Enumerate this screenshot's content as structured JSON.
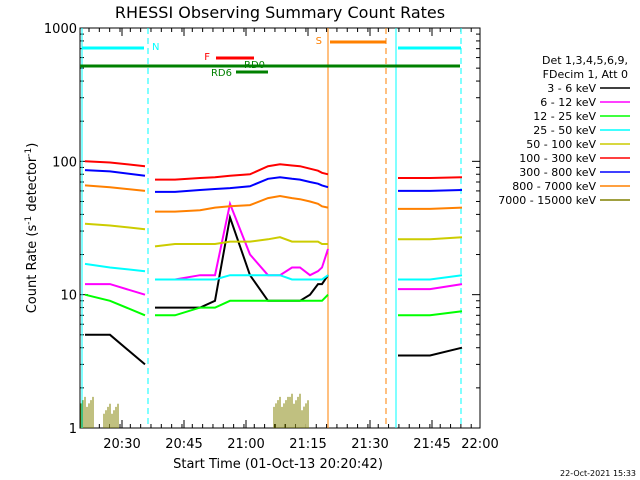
{
  "chart_data": {
    "type": "line",
    "title": "RHESSI Observing Summary Count Rates",
    "xlabel": "Start Time (01-Oct-13 20:20:42)",
    "ylabel_prefix": "Count Rate (s",
    "ylabel_sup": "-1",
    "ylabel_mid": " detector",
    "ylabel_sup2": "-1",
    "ylabel_suffix": ")",
    "yscale": "log",
    "ylim": [
      1,
      1000
    ],
    "x_tick_labels": [
      "20:30",
      "20:45",
      "21:00",
      "21:15",
      "21:30",
      "21:45",
      "22:00"
    ],
    "y_tick_labels": [
      "1",
      "10",
      "100",
      "1000"
    ],
    "legend_header": [
      "Det 1,3,4,5,6,9,",
      "FDecim 1, Att 0"
    ],
    "series": [
      {
        "name": "3 - 6 keV",
        "color": "#000000",
        "values": [
          5,
          5,
          3,
          null,
          null,
          8,
          8,
          8,
          9,
          38,
          14,
          9,
          9,
          9,
          9,
          10,
          12,
          12,
          14,
          null,
          null,
          null,
          null,
          3.5,
          3.5,
          4
        ]
      },
      {
        "name": "6 - 12 keV",
        "color": "#ff00ff",
        "values": [
          12,
          12,
          10,
          null,
          null,
          13,
          13,
          14,
          14,
          48,
          20,
          14,
          14,
          16,
          16,
          14,
          15,
          16,
          22,
          null,
          null,
          null,
          null,
          11,
          11,
          12
        ]
      },
      {
        "name": "12 - 25 keV",
        "color": "#00ff00",
        "values": [
          10,
          9,
          7,
          null,
          null,
          7,
          7,
          8,
          8,
          9,
          9,
          9,
          9,
          9,
          9,
          9,
          9,
          9,
          10,
          null,
          null,
          null,
          null,
          7,
          7,
          7.5
        ]
      },
      {
        "name": "25 - 50 keV",
        "color": "#00ffff",
        "values": [
          17,
          16,
          15,
          null,
          null,
          13,
          13,
          13,
          13,
          14,
          14,
          14,
          14,
          13,
          13,
          13,
          13,
          13,
          14,
          null,
          null,
          null,
          null,
          13,
          13,
          14
        ]
      },
      {
        "name": "50 - 100 keV",
        "color": "#cccc00",
        "values": [
          34,
          33,
          31,
          null,
          null,
          23,
          24,
          24,
          24,
          25,
          25,
          26,
          27,
          25,
          25,
          25,
          25,
          24,
          24,
          null,
          null,
          null,
          null,
          26,
          26,
          27
        ]
      },
      {
        "name": "100 - 300 keV",
        "color": "#ff0000",
        "values": [
          100,
          98,
          92,
          null,
          null,
          73,
          73,
          75,
          76,
          78,
          80,
          92,
          95,
          93,
          92,
          88,
          85,
          82,
          80,
          null,
          null,
          null,
          null,
          75,
          75,
          76
        ]
      },
      {
        "name": "300 - 800 keV",
        "color": "#0000ff",
        "values": [
          86,
          84,
          78,
          null,
          null,
          59,
          59,
          61,
          62,
          63,
          65,
          74,
          76,
          74,
          73,
          70,
          68,
          66,
          64,
          null,
          null,
          null,
          null,
          60,
          60,
          61
        ]
      },
      {
        "name": "800 - 7000 keV",
        "color": "#ff8000",
        "values": [
          66,
          64,
          60,
          null,
          null,
          42,
          42,
          43,
          45,
          46,
          47,
          53,
          55,
          53,
          52,
          50,
          48,
          46,
          45,
          null,
          null,
          null,
          null,
          44,
          44,
          45
        ]
      },
      {
        "name": "7000 - 15000 keV",
        "color": "#808000",
        "values": [
          1.8,
          1.6,
          null,
          null,
          null,
          null,
          null,
          null,
          null,
          null,
          null,
          null,
          1.8,
          1.9,
          1.7,
          null,
          null,
          null,
          null,
          null,
          null,
          null,
          null,
          null,
          null,
          null
        ]
      }
    ],
    "markers": [
      {
        "label": "N",
        "color": "#00ffff"
      },
      {
        "label": "F",
        "color": "#ff0000"
      },
      {
        "label": "RD0",
        "color": "#008000"
      },
      {
        "label": "RD6",
        "color": "#008000"
      },
      {
        "label": "S",
        "color": "#ff8000"
      }
    ],
    "timestamp": "22-Oct-2021 15:33"
  }
}
